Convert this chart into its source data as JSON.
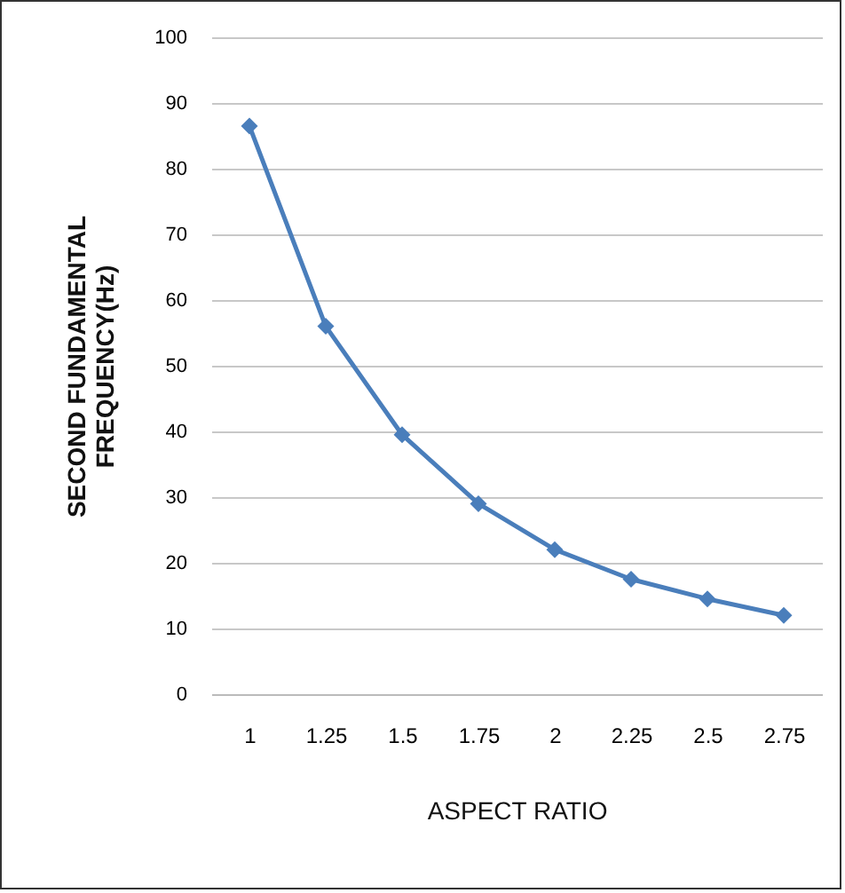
{
  "chart_data": {
    "type": "line",
    "xlabel": "ASPECT RATIO",
    "ylabel": "SECOND FUNDAMENTAL\nFREQUENCY(Hz)",
    "categories": [
      "1",
      "1.25",
      "1.5",
      "1.75",
      "2",
      "2.25",
      "2.5",
      "2.75"
    ],
    "series": [
      {
        "color": "#4a7ebb",
        "values": [
          86.5,
          56,
          39.5,
          29,
          22,
          17.5,
          14.5,
          12
        ]
      }
    ],
    "ylim": [
      0,
      100
    ],
    "yticks": [
      0,
      10,
      20,
      30,
      40,
      50,
      60,
      70,
      80,
      90,
      100
    ],
    "grid": "y",
    "marker": "diamond",
    "line_style": "solid",
    "legend": false
  }
}
